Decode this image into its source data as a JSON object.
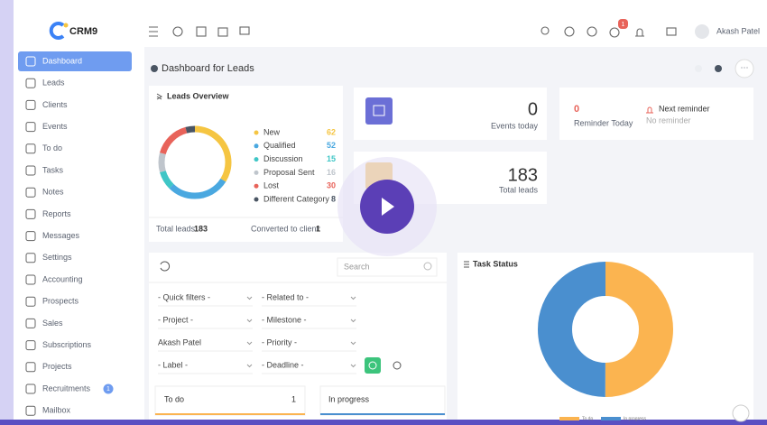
{
  "topbar": {
    "logo": "CRM9",
    "user": "Akash Patel",
    "notification_count": "1"
  },
  "sidebar": {
    "items": [
      "Dashboard",
      "Leads",
      "Clients",
      "Events",
      "To do",
      "Tasks",
      "Notes",
      "Reports",
      "Messages",
      "Settings",
      "Accounting",
      "Prospects",
      "Sales",
      "Subscriptions",
      "Projects",
      "Recruitments",
      "Mailbox"
    ],
    "recruitments_badge": "1"
  },
  "page_title": "Dashboard for Leads",
  "leads_overview": {
    "title": "Leads Overview",
    "type": "donut",
    "categories": [
      "New",
      "Qualified",
      "Discussion",
      "Proposal Sent",
      "Lost",
      "Different Category"
    ],
    "values": [
      62,
      52,
      15,
      16,
      30,
      8
    ],
    "colors": [
      "#f5c542",
      "#4aa8e0",
      "#3fc6c6",
      "#bfc5cc",
      "#e8635a",
      "#4a5563"
    ],
    "total_label": "Total leads:",
    "total": 183,
    "converted_label": "Converted to client:",
    "converted": 1
  },
  "events": {
    "value": 0,
    "label": "Events today"
  },
  "reminder": {
    "value": 0,
    "label": "Reminder Today",
    "next_title": "Next reminder",
    "next_text": "No reminder"
  },
  "total_leads": {
    "value": 183,
    "label": "Total leads"
  },
  "filters": {
    "search_placeholder": "Search",
    "selects": [
      [
        "- Quick filters -",
        "- Related to -"
      ],
      [
        "- Project -",
        "- Milestone -"
      ],
      [
        "Akash Patel",
        "- Priority -"
      ],
      [
        "- Label -",
        "- Deadline -"
      ]
    ]
  },
  "task_status": {
    "title": "Task Status",
    "type": "donut",
    "categories": [
      "To do",
      "In progress"
    ],
    "values": [
      50,
      50
    ],
    "colors": [
      "#fbb450",
      "#4a8fcf"
    ]
  },
  "kanban": [
    {
      "title": "To do",
      "count": 1
    },
    {
      "title": "In progress"
    }
  ]
}
